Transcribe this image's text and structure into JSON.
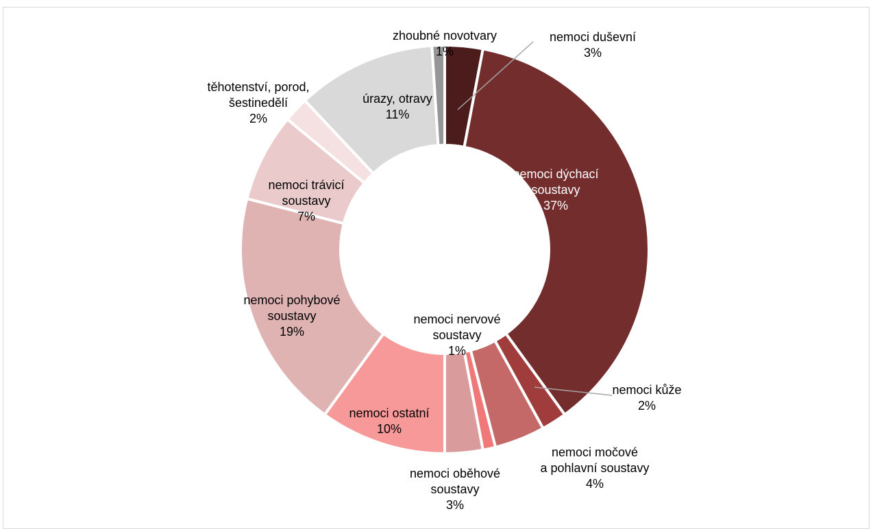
{
  "chart_data": {
    "type": "pie",
    "donut": true,
    "title": "",
    "slices": [
      {
        "label_lines": [
          "nemoci duševní",
          "3%"
        ],
        "value": 3,
        "color": "#4c1c1c",
        "label_color": "#000000"
      },
      {
        "label_lines": [
          "nemoci dýchací",
          "soustavy",
          "37%"
        ],
        "value": 37,
        "color": "#732d2d",
        "label_color": "#ffffff"
      },
      {
        "label_lines": [
          "nemoci kůže",
          "2%"
        ],
        "value": 2,
        "color": "#a03c3c",
        "label_color": "#000000"
      },
      {
        "label_lines": [
          "nemoci močové",
          "a pohlavní soustavy",
          "4%"
        ],
        "value": 4,
        "color": "#c46868",
        "label_color": "#000000"
      },
      {
        "label_lines": [
          "nemoci nervové",
          "soustavy",
          "1%"
        ],
        "value": 1,
        "color": "#f07878",
        "label_color": "#000000"
      },
      {
        "label_lines": [
          "nemoci oběhové",
          "soustavy",
          "3%"
        ],
        "value": 3,
        "color": "#d99b9b",
        "label_color": "#000000"
      },
      {
        "label_lines": [
          "nemoci ostatní",
          "10%"
        ],
        "value": 10,
        "color": "#f79999",
        "label_color": "#000000"
      },
      {
        "label_lines": [
          "nemoci pohybové",
          "soustavy",
          "19%"
        ],
        "value": 19,
        "color": "#e0b3b3",
        "label_color": "#000000"
      },
      {
        "label_lines": [
          "nemoci trávicí",
          "soustavy",
          "7%"
        ],
        "value": 7,
        "color": "#eacaca",
        "label_color": "#000000"
      },
      {
        "label_lines": [
          "těhotenství, porod,",
          "šestinedělí",
          "2%"
        ],
        "value": 2,
        "color": "#f5e1e1",
        "label_color": "#000000"
      },
      {
        "label_lines": [
          "úrazy, otravy",
          "11%"
        ],
        "value": 11,
        "color": "#d9d9d9",
        "label_color": "#000000"
      },
      {
        "label_lines": [
          "zhoubné novotvary",
          "1%"
        ],
        "value": 1,
        "color": "#969696",
        "label_color": "#000000"
      }
    ]
  }
}
